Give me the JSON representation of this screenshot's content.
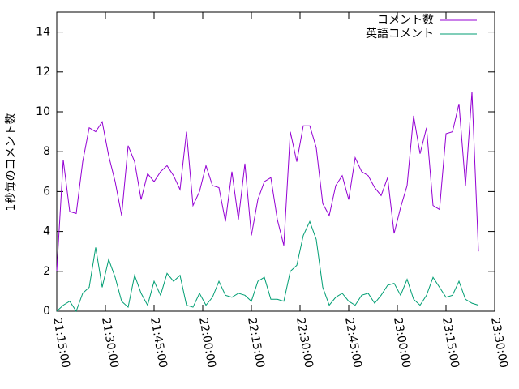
{
  "chart_data": {
    "type": "line",
    "ylabel": "1秒毎のコメント数",
    "x": [
      "21:15:00",
      "21:17:00",
      "21:19:00",
      "21:21:00",
      "21:23:00",
      "21:25:00",
      "21:27:00",
      "21:29:00",
      "21:31:00",
      "21:33:00",
      "21:35:00",
      "21:37:00",
      "21:39:00",
      "21:41:00",
      "21:43:00",
      "21:45:00",
      "21:47:00",
      "21:49:00",
      "21:51:00",
      "21:53:00",
      "21:55:00",
      "21:57:00",
      "21:59:00",
      "22:01:00",
      "22:03:00",
      "22:05:00",
      "22:07:00",
      "22:09:00",
      "22:11:00",
      "22:13:00",
      "22:15:00",
      "22:17:00",
      "22:19:00",
      "22:21:00",
      "22:23:00",
      "22:25:00",
      "22:27:00",
      "22:29:00",
      "22:31:00",
      "22:33:00",
      "22:35:00",
      "22:37:00",
      "22:39:00",
      "22:41:00",
      "22:43:00",
      "22:45:00",
      "22:47:00",
      "22:49:00",
      "22:51:00",
      "22:53:00",
      "22:55:00",
      "22:57:00",
      "22:59:00",
      "23:01:00",
      "23:03:00",
      "23:05:00",
      "23:07:00",
      "23:09:00",
      "23:11:00",
      "23:13:00",
      "23:15:00",
      "23:17:00",
      "23:19:00",
      "23:21:00",
      "23:23:00",
      "23:25:00"
    ],
    "series": [
      {
        "name": "コメント数",
        "color": "#9400d3",
        "values": [
          2.0,
          7.6,
          5.0,
          4.9,
          7.5,
          9.2,
          9.0,
          9.5,
          7.8,
          6.5,
          4.8,
          8.3,
          7.5,
          5.6,
          6.9,
          6.5,
          7.0,
          7.3,
          6.8,
          6.1,
          9.0,
          5.3,
          6.0,
          7.3,
          6.3,
          6.2,
          4.5,
          7.0,
          4.6,
          7.4,
          3.8,
          5.6,
          6.5,
          6.7,
          4.6,
          3.3,
          9.0,
          7.5,
          9.3,
          9.3,
          8.2,
          5.4,
          4.8,
          6.3,
          6.8,
          5.6,
          7.7,
          7.0,
          6.8,
          6.2,
          5.8,
          6.7,
          3.9,
          5.2,
          6.3,
          9.8,
          7.9,
          9.2,
          5.3,
          5.1,
          8.9,
          9.0,
          10.4,
          6.3,
          11.0,
          3.0
        ]
      },
      {
        "name": "英語コメント",
        "color": "#009e73",
        "values": [
          0.0,
          0.3,
          0.5,
          0.0,
          0.9,
          1.2,
          3.2,
          1.2,
          2.6,
          1.7,
          0.5,
          0.2,
          1.8,
          0.9,
          0.3,
          1.5,
          0.8,
          1.9,
          1.5,
          1.8,
          0.3,
          0.2,
          0.9,
          0.3,
          0.7,
          1.5,
          0.8,
          0.7,
          0.9,
          0.8,
          0.5,
          1.5,
          1.7,
          0.6,
          0.6,
          0.5,
          2.0,
          2.3,
          3.8,
          4.5,
          3.6,
          1.2,
          0.3,
          0.7,
          0.9,
          0.5,
          0.3,
          0.8,
          0.9,
          0.4,
          0.8,
          1.3,
          1.4,
          0.8,
          1.6,
          0.6,
          0.3,
          0.8,
          1.7,
          1.2,
          0.7,
          0.8,
          1.5,
          0.6,
          0.4,
          0.3
        ]
      }
    ],
    "xlim": [
      "21:15:00",
      "23:30:00"
    ],
    "xticks": [
      "21:15:00",
      "21:30:00",
      "21:45:00",
      "22:00:00",
      "22:15:00",
      "22:30:00",
      "22:45:00",
      "23:00:00",
      "23:15:00",
      "23:30:00"
    ],
    "ylim": [
      0,
      15
    ],
    "yticks": [
      0,
      2,
      4,
      6,
      8,
      10,
      12,
      14
    ],
    "legend": "top-right"
  }
}
